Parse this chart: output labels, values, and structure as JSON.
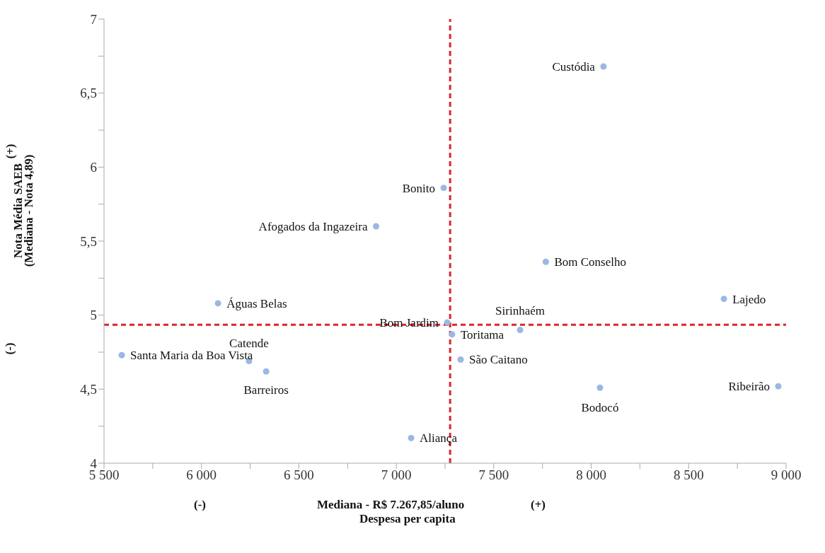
{
  "chart_data": {
    "type": "scatter",
    "xlabel": "Despesa per capita",
    "ylabel": "Nota Média SAEB",
    "x": [
      8063,
      7243,
      6896,
      7767,
      8681,
      6085,
      7261,
      7286,
      7635,
      5591,
      6244,
      6332,
      7330,
      8045,
      8960,
      7076
    ],
    "series": [
      {
        "color": "#9bb7e2",
        "values": [
          6.68,
          5.86,
          5.6,
          5.36,
          5.11,
          5.08,
          4.95,
          4.87,
          4.9,
          4.73,
          4.69,
          4.62,
          4.7,
          4.51,
          4.52,
          4.17
        ]
      }
    ],
    "xlim": [
      5500,
      9000
    ],
    "xticks": [
      {
        "value": 5500,
        "label": "5 500"
      },
      {
        "value": 5750,
        "label": null
      },
      {
        "value": 6000,
        "label": "6 000"
      },
      {
        "value": 6250,
        "label": null
      },
      {
        "value": 6500,
        "label": "6 500"
      },
      {
        "value": 6750,
        "label": null
      },
      {
        "value": 7000,
        "label": "7 000"
      },
      {
        "value": 7250,
        "label": null
      },
      {
        "value": 7500,
        "label": "7 500"
      },
      {
        "value": 7750,
        "label": null
      },
      {
        "value": 8000,
        "label": "8 000"
      },
      {
        "value": 8250,
        "label": null
      },
      {
        "value": 8500,
        "label": "8 500"
      },
      {
        "value": 8750,
        "label": null
      },
      {
        "value": 9000,
        "label": "9 000"
      }
    ],
    "ylim": [
      4,
      7
    ],
    "yticks": [
      4,
      {
        "value": 4.25,
        "label": null
      },
      {
        "value": 4.5,
        "label": "4,5"
      },
      {
        "value": 4.75,
        "label": null
      },
      5,
      {
        "value": 5.25,
        "label": null
      },
      {
        "value": 5.5,
        "label": "5,5"
      },
      {
        "value": 5.75,
        "label": null
      },
      6,
      {
        "value": 6.25,
        "label": null
      },
      {
        "value": 6.5,
        "label": "6,5"
      },
      {
        "value": 6.75,
        "label": null
      },
      7
    ],
    "ref_lines": [
      {
        "axis": "x",
        "value": 7276,
        "color": "#d8262e",
        "line_style": "dashed"
      },
      {
        "axis": "y",
        "value": 4.935,
        "color": "#d8262e",
        "line_style": "dashed"
      }
    ],
    "annotations": [
      "(-)",
      "(+)",
      "(+)",
      "(-)",
      "Mediana - R$ 7.267,85/aluno",
      "(Mediana - Nota 4,89)",
      {
        "text": "Custódia",
        "x": 8063,
        "y": 6.68
      },
      {
        "text": "Bonito",
        "x": 7243,
        "y": 5.86
      },
      {
        "text": "Afogados da Ingazeira",
        "x": 6896,
        "y": 5.6
      },
      {
        "text": "Bom Conselho",
        "x": 7767,
        "y": 5.36
      },
      {
        "text": "Lajedo",
        "x": 8681,
        "y": 5.11
      },
      {
        "text": "Águas Belas",
        "x": 6085,
        "y": 5.08
      },
      {
        "text": "Bom Jardim",
        "x": 7261,
        "y": 4.95
      },
      {
        "text": "Toritama",
        "x": 7286,
        "y": 4.87
      },
      {
        "text": "Sirinhaém",
        "x": 7635,
        "y": 4.9
      },
      {
        "text": "Santa Maria da Boa Vista",
        "x": 5591,
        "y": 4.73
      },
      {
        "text": "Catende",
        "x": 6244,
        "y": 4.69
      },
      {
        "text": "Barreiros",
        "x": 6332,
        "y": 4.62
      },
      {
        "text": "São Caitano",
        "x": 7330,
        "y": 4.7
      },
      {
        "text": "Bodocó",
        "x": 8045,
        "y": 4.51
      },
      {
        "text": "Ribeirão",
        "x": 8960,
        "y": 4.52
      },
      {
        "text": "Aliança",
        "x": 7076,
        "y": 4.17
      }
    ],
    "marker": "circle"
  }
}
